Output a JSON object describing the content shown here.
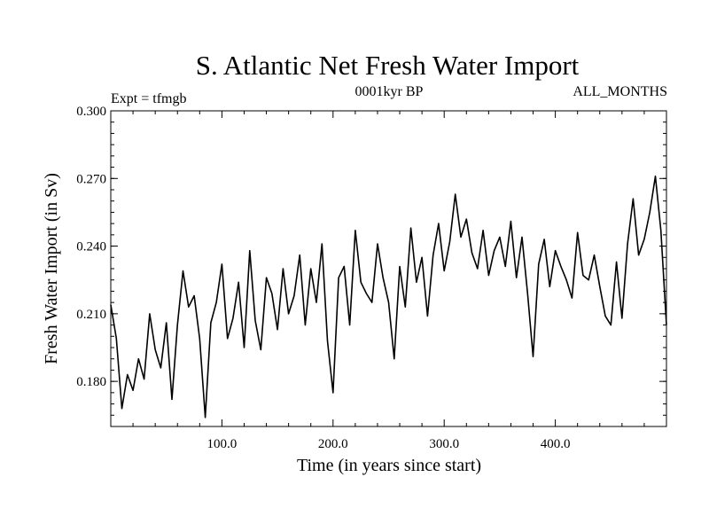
{
  "chart_data": {
    "type": "line",
    "title": "S. Atlantic Net Fresh Water Import",
    "subtitle_left": "Expt = tfmgb",
    "subtitle_center": "0001kyr BP",
    "subtitle_right": "ALL_MONTHS",
    "xlabel": "Time (in years since start)",
    "ylabel": "Fresh Water Import (in Sv)",
    "xlim": [
      0,
      500
    ],
    "ylim": [
      0.16,
      0.3
    ],
    "x_ticks": [
      100,
      200,
      300,
      400
    ],
    "x_tick_labels": [
      "100.0",
      "200.0",
      "300.0",
      "400.0"
    ],
    "y_ticks": [
      0.18,
      0.21,
      0.24,
      0.27,
      0.3
    ],
    "y_tick_labels": [
      "0.180",
      "0.210",
      "0.240",
      "0.270",
      "0.300"
    ],
    "grid": false,
    "series": [
      {
        "x": [
          0,
          5,
          10,
          15,
          20,
          25,
          30,
          35,
          40,
          45,
          50,
          55,
          60,
          65,
          70,
          75,
          80,
          85,
          90,
          95,
          100,
          105,
          110,
          115,
          120,
          125,
          130,
          135,
          140,
          145,
          150,
          155,
          160,
          165,
          170,
          175,
          180,
          185,
          190,
          195,
          200,
          205,
          210,
          215,
          220,
          225,
          230,
          235,
          240,
          245,
          250,
          255,
          260,
          265,
          270,
          275,
          280,
          285,
          290,
          295,
          300,
          305,
          310,
          315,
          320,
          325,
          330,
          335,
          340,
          345,
          350,
          355,
          360,
          365,
          370,
          375,
          380,
          385,
          390,
          395,
          400,
          405,
          410,
          415,
          420,
          425,
          430,
          435,
          440,
          445,
          450,
          455,
          460,
          465,
          470,
          475,
          480,
          485,
          490,
          495,
          500
        ],
        "values": [
          0.214,
          0.199,
          0.168,
          0.183,
          0.176,
          0.19,
          0.181,
          0.21,
          0.194,
          0.186,
          0.206,
          0.172,
          0.205,
          0.229,
          0.213,
          0.218,
          0.199,
          0.164,
          0.206,
          0.215,
          0.232,
          0.199,
          0.208,
          0.224,
          0.195,
          0.238,
          0.207,
          0.194,
          0.226,
          0.219,
          0.203,
          0.23,
          0.21,
          0.218,
          0.236,
          0.205,
          0.23,
          0.215,
          0.241,
          0.198,
          0.175,
          0.226,
          0.231,
          0.205,
          0.247,
          0.224,
          0.219,
          0.215,
          0.241,
          0.226,
          0.215,
          0.19,
          0.231,
          0.213,
          0.248,
          0.224,
          0.235,
          0.209,
          0.236,
          0.25,
          0.229,
          0.242,
          0.263,
          0.244,
          0.252,
          0.237,
          0.23,
          0.247,
          0.227,
          0.238,
          0.244,
          0.231,
          0.251,
          0.226,
          0.244,
          0.219,
          0.191,
          0.232,
          0.243,
          0.222,
          0.238,
          0.231,
          0.225,
          0.217,
          0.246,
          0.227,
          0.225,
          0.236,
          0.222,
          0.209,
          0.205,
          0.233,
          0.208,
          0.241,
          0.261,
          0.236,
          0.243,
          0.255,
          0.271,
          0.247,
          0.205
        ]
      }
    ]
  }
}
